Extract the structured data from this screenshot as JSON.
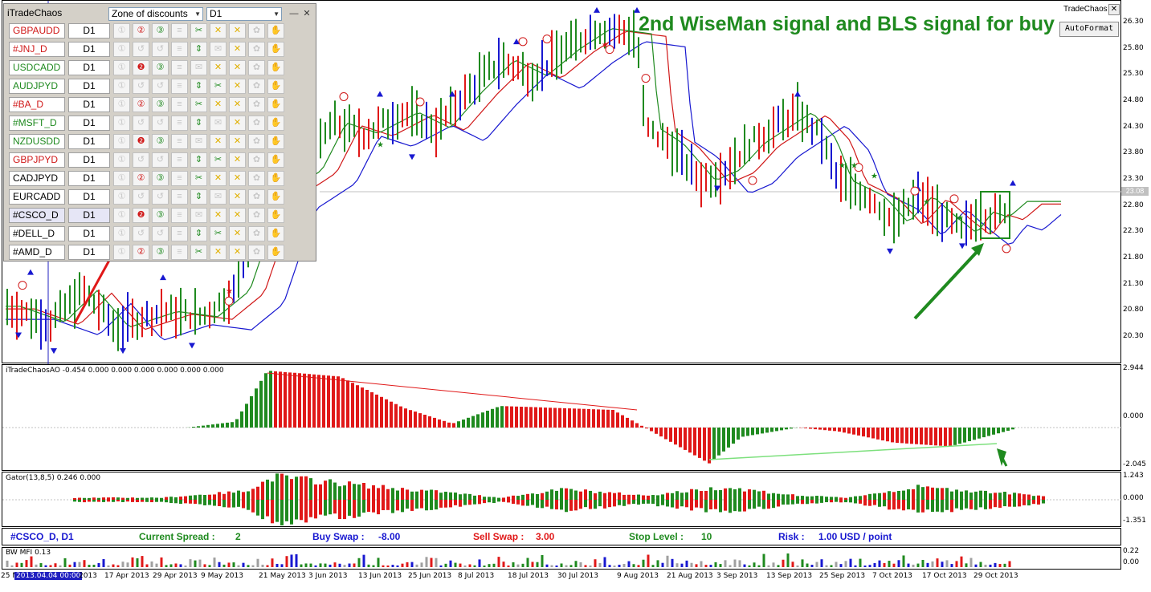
{
  "panel": {
    "title": "iTradeChaos",
    "zone_dropdown": "Zone of discounts",
    "tf_dropdown": "D1",
    "rows": [
      {
        "symbol": "GBPAUDD",
        "color": "#d01818",
        "tf": "D1"
      },
      {
        "symbol": "#JNJ_D",
        "color": "#d01818",
        "tf": "D1"
      },
      {
        "symbol": "USDCADD",
        "color": "#1f8a1f",
        "tf": "D1"
      },
      {
        "symbol": "AUDJPYD",
        "color": "#1f8a1f",
        "tf": "D1"
      },
      {
        "symbol": "#BA_D",
        "color": "#d01818",
        "tf": "D1"
      },
      {
        "symbol": "#MSFT_D",
        "color": "#1f8a1f",
        "tf": "D1"
      },
      {
        "symbol": "NZDUSDD",
        "color": "#1f8a1f",
        "tf": "D1"
      },
      {
        "symbol": "GBPJPYD",
        "color": "#d01818",
        "tf": "D1"
      },
      {
        "symbol": "CADJPYD",
        "color": "#000000",
        "tf": "D1"
      },
      {
        "symbol": "EURCADD",
        "color": "#000000",
        "tf": "D1"
      },
      {
        "symbol": "#CSCO_D",
        "color": "#000000",
        "tf": "D1"
      },
      {
        "symbol": "#DELL_D",
        "color": "#000000",
        "tf": "D1"
      },
      {
        "symbol": "#AMD_D",
        "color": "#000000",
        "tf": "D1"
      }
    ]
  },
  "main_chart": {
    "annotation": "2nd WiseMan signal and BLS signal for buy",
    "label_right": "TradeChaos",
    "autoformat_button": "AutoFormat",
    "current_price_tag": "23.08",
    "price_ticks": [
      "26.30",
      "25.80",
      "25.30",
      "24.80",
      "24.30",
      "23.80",
      "23.30",
      "22.80",
      "22.30",
      "21.80",
      "21.30",
      "20.80",
      "20.30"
    ]
  },
  "ao_pane": {
    "label": "iTradeChaosAO -0.454 0.000 0.000 0.000 0.000 0.000 0.000",
    "ticks": [
      "2.944",
      "0.000",
      "-2.045"
    ]
  },
  "gator_pane": {
    "label": "Gator(13,8,5) 0.246 0.000",
    "ticks": [
      "1.243",
      "0.000",
      "-1.351"
    ]
  },
  "info_bar": {
    "symbol": "#CSCO_D, D1",
    "spread_label": "Current Spread :",
    "spread_value": "2",
    "buy_swap_label": "Buy Swap :",
    "buy_swap_value": "-8.00",
    "sell_swap_label": "Sell Swap :",
    "sell_swap_value": "3.00",
    "stop_label": "Stop Level :",
    "stop_value": "10",
    "risk_label": "Risk :",
    "risk_value": "1.00 USD / point"
  },
  "mfi_pane": {
    "label": "BW MFI 0.13",
    "ticks": [
      "0.22",
      "0.00"
    ]
  },
  "x_axis": {
    "cursor_date": "2013.04.04 00:00",
    "first_label": "25 M",
    "dates": [
      "2013",
      "17 Apr 2013",
      "29 Apr 2013",
      "9 May 2013",
      "21 May 2013",
      "3 Jun 2013",
      "13 Jun 2013",
      "25 Jun 2013",
      "8 Jul 2013",
      "18 Jul 2013",
      "30 Jul 2013",
      "9 Aug 2013",
      "21 Aug 2013",
      "3 Sep 2013",
      "13 Sep 2013",
      "25 Sep 2013",
      "7 Oct 2013",
      "17 Oct 2013",
      "29 Oct 2013"
    ]
  },
  "colors": {
    "up": "#1f8a1f",
    "down": "#e01818",
    "neutral": "#1818d0",
    "accent": "#1f8a1f"
  }
}
